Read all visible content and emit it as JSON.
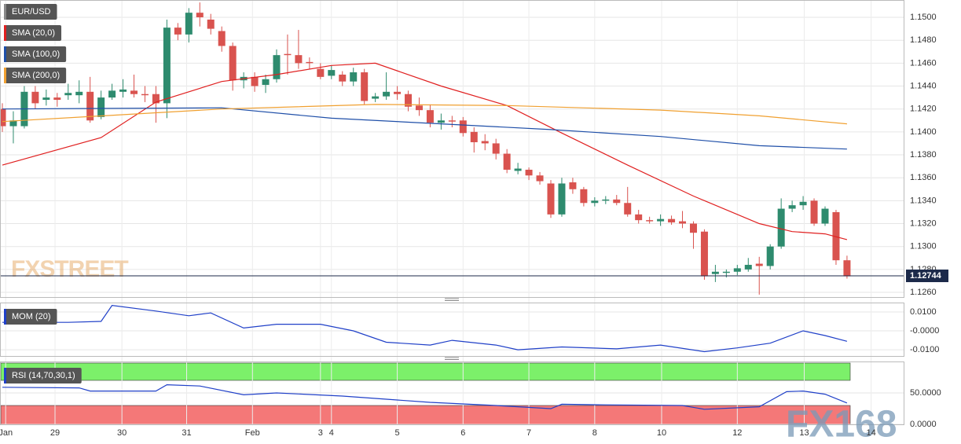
{
  "chart_data": [
    {
      "type": "candlestick",
      "series_name": "EUR/USD",
      "up_color": "#2e8b6e",
      "down_color": "#d9534f",
      "open": [
        1.142,
        1.1405,
        1.1405,
        1.1435,
        1.1428,
        1.143,
        1.1432,
        1.1432,
        1.1435,
        1.1413,
        1.143,
        1.1435,
        1.1436,
        1.1433,
        1.1433,
        1.1425,
        1.1491,
        1.1485,
        1.1504,
        1.1498,
        1.1488,
        1.1475,
        1.1445,
        1.1448,
        1.1441,
        1.1446,
        1.1468,
        1.1467,
        1.1461,
        1.1455,
        1.1449,
        1.145,
        1.1444,
        1.1452,
        1.1429,
        1.1431,
        1.1435,
        1.1433,
        1.1423,
        1.1419,
        1.1408,
        1.141,
        1.141,
        1.14,
        1.1392,
        1.139,
        1.1381,
        1.1366,
        1.1367,
        1.1362,
        1.1355,
        1.1328,
        1.1356,
        1.135,
        1.1338,
        1.134,
        1.1341,
        1.1338,
        1.1328,
        1.1323,
        1.1322,
        1.1324,
        1.1322,
        1.132,
        1.1313,
        1.1276,
        1.1277,
        1.1278,
        1.128,
        1.1285,
        1.1283,
        1.13,
        1.1333,
        1.1336,
        1.134,
        1.132,
        1.133,
        1.1288
      ],
      "high": [
        1.1425,
        1.1418,
        1.144,
        1.144,
        1.1437,
        1.1434,
        1.1442,
        1.1445,
        1.1448,
        1.1436,
        1.1442,
        1.1446,
        1.145,
        1.144,
        1.144,
        1.1498,
        1.1495,
        1.1508,
        1.1513,
        1.1503,
        1.1492,
        1.1478,
        1.1452,
        1.1452,
        1.145,
        1.1472,
        1.1485,
        1.1489,
        1.1465,
        1.146,
        1.1458,
        1.1453,
        1.1456,
        1.1455,
        1.1434,
        1.1452,
        1.144,
        1.1436,
        1.143,
        1.1424,
        1.1416,
        1.1414,
        1.1413,
        1.1404,
        1.1398,
        1.1394,
        1.1385,
        1.1373,
        1.1369,
        1.1365,
        1.1358,
        1.136,
        1.136,
        1.1352,
        1.1343,
        1.1344,
        1.1345,
        1.1352,
        1.1332,
        1.1326,
        1.1328,
        1.1327,
        1.1331,
        1.1322,
        1.1315,
        1.1284,
        1.128,
        1.1284,
        1.129,
        1.1291,
        1.1302,
        1.1342,
        1.134,
        1.1344,
        1.1342,
        1.1335,
        1.1332,
        1.1292
      ],
      "low": [
        1.14,
        1.139,
        1.1403,
        1.142,
        1.1423,
        1.1422,
        1.1428,
        1.1425,
        1.1408,
        1.1411,
        1.1428,
        1.143,
        1.143,
        1.1426,
        1.1408,
        1.1412,
        1.148,
        1.1478,
        1.1492,
        1.1485,
        1.147,
        1.1436,
        1.1438,
        1.1435,
        1.1434,
        1.1443,
        1.145,
        1.1455,
        1.1455,
        1.1446,
        1.1446,
        1.144,
        1.144,
        1.1424,
        1.1426,
        1.1428,
        1.1428,
        1.1418,
        1.1414,
        1.1404,
        1.1402,
        1.1404,
        1.1396,
        1.1382,
        1.1384,
        1.1376,
        1.1364,
        1.1363,
        1.1358,
        1.1354,
        1.1325,
        1.1326,
        1.1346,
        1.1335,
        1.1335,
        1.1337,
        1.1336,
        1.1326,
        1.132,
        1.132,
        1.1318,
        1.1319,
        1.1316,
        1.1298,
        1.1271,
        1.1269,
        1.1273,
        1.1275,
        1.1278,
        1.1258,
        1.128,
        1.1298,
        1.133,
        1.1332,
        1.1318,
        1.1318,
        1.1284,
        1.1272
      ],
      "close": [
        1.1405,
        1.141,
        1.1435,
        1.1425,
        1.143,
        1.1428,
        1.1434,
        1.1435,
        1.141,
        1.143,
        1.1436,
        1.1437,
        1.1433,
        1.1432,
        1.1425,
        1.1491,
        1.1485,
        1.1504,
        1.15,
        1.149,
        1.1475,
        1.1445,
        1.1448,
        1.144,
        1.1446,
        1.1467,
        1.1467,
        1.146,
        1.146,
        1.1448,
        1.1454,
        1.1444,
        1.1452,
        1.1427,
        1.1431,
        1.1435,
        1.1433,
        1.1422,
        1.1419,
        1.1408,
        1.141,
        1.1409,
        1.1399,
        1.1391,
        1.139,
        1.1381,
        1.1367,
        1.1368,
        1.1362,
        1.1357,
        1.1328,
        1.1355,
        1.135,
        1.1338,
        1.134,
        1.1341,
        1.1338,
        1.1328,
        1.1323,
        1.1322,
        1.1324,
        1.1321,
        1.132,
        1.1312,
        1.1274,
        1.1278,
        1.1278,
        1.1281,
        1.1284,
        1.1283,
        1.13,
        1.1333,
        1.1336,
        1.1339,
        1.132,
        1.1333,
        1.1288,
        1.1274
      ],
      "series": [
        {
          "name": "SMA (20,0)",
          "color": "#e02020",
          "x": [
            0,
            9,
            14,
            20,
            25,
            30,
            34,
            40,
            46,
            51,
            57,
            63,
            69,
            72,
            75,
            77
          ],
          "values": [
            1.1371,
            1.1395,
            1.1426,
            1.1444,
            1.145,
            1.1458,
            1.146,
            1.144,
            1.1423,
            1.1399,
            1.1371,
            1.1344,
            1.132,
            1.1313,
            1.1311,
            1.1306
          ]
        },
        {
          "name": "SMA (100,0)",
          "color": "#1f4fa8",
          "x": [
            0,
            20,
            30,
            40,
            50,
            60,
            69,
            77
          ],
          "values": [
            1.142,
            1.1421,
            1.1412,
            1.1407,
            1.1402,
            1.1396,
            1.1388,
            1.1385
          ]
        },
        {
          "name": "SMA (200,0)",
          "color": "#f0a030",
          "x": [
            0,
            20,
            34,
            46,
            60,
            69,
            77
          ],
          "values": [
            1.1409,
            1.142,
            1.1424,
            1.1423,
            1.1419,
            1.1414,
            1.1407
          ]
        }
      ],
      "last_price": 1.12744,
      "ylim": [
        1.12559,
        1.15151
      ],
      "yticks": [
        {
          "value": 1.126,
          "label": "1.1260"
        },
        {
          "value": 1.128,
          "label": "1.1280"
        },
        {
          "value": 1.13,
          "label": "1.1300"
        },
        {
          "value": 1.132,
          "label": "1.1320"
        },
        {
          "value": 1.134,
          "label": "1.1340"
        },
        {
          "value": 1.136,
          "label": "1.1360"
        },
        {
          "value": 1.138,
          "label": "1.1380"
        },
        {
          "value": 1.14,
          "label": "1.1400"
        },
        {
          "value": 1.142,
          "label": "1.1420"
        },
        {
          "value": 1.144,
          "label": "1.1440"
        },
        {
          "value": 1.146,
          "label": "1.1460"
        },
        {
          "value": 1.148,
          "label": "1.1480"
        },
        {
          "value": 1.15,
          "label": "1.1500"
        }
      ]
    },
    {
      "type": "line",
      "series": [
        {
          "name": "MOM (20)",
          "color": "#2040c8",
          "x": [
            0,
            6,
            9,
            10,
            14,
            17,
            19,
            22,
            25,
            29,
            32,
            35,
            39,
            41,
            45,
            47,
            51,
            56,
            60,
            64,
            67,
            70,
            73,
            75,
            77
          ],
          "values": [
            0.0045,
            0.0045,
            0.005,
            0.0135,
            0.0105,
            0.008,
            0.0095,
            0.0015,
            0.0035,
            0.0035,
            0.0,
            -0.006,
            -0.0075,
            -0.005,
            -0.0075,
            -0.01,
            -0.0085,
            -0.0095,
            -0.0075,
            -0.011,
            -0.009,
            -0.0065,
            0.0,
            -0.0025,
            -0.0055
          ]
        }
      ],
      "ylim": [
        -0.0133,
        0.015
      ],
      "yticks": [
        {
          "value": 0.01,
          "label": "0.0100"
        },
        {
          "value": 0,
          "label": "-0.0000"
        },
        {
          "value": -0.01,
          "label": "-0.0100"
        }
      ]
    },
    {
      "type": "line",
      "series": [
        {
          "name": "RSI (14,70,30,1)",
          "color": "#2040c8",
          "x": [
            0,
            7,
            8,
            14,
            15,
            18,
            22,
            25,
            31,
            35,
            39,
            45,
            50,
            51,
            55,
            62,
            64,
            69,
            71.5,
            73,
            75,
            77
          ],
          "values": [
            59,
            58,
            53,
            53,
            63,
            61,
            47,
            50,
            45,
            40,
            35,
            30,
            25,
            32,
            31,
            30,
            24,
            28,
            52,
            53,
            48,
            34
          ]
        }
      ],
      "bands": [
        {
          "from": 70,
          "to": 100,
          "color": "#7cf06a"
        },
        {
          "from": 0,
          "to": 30,
          "color": "#f47878"
        }
      ],
      "ylim": [
        0,
        100
      ],
      "yticks": [
        {
          "value": 50,
          "label": "50.0000"
        },
        {
          "value": 0,
          "label": "0.0000"
        }
      ],
      "xticks": [
        {
          "value": 0.3,
          "label": "Jan"
        },
        {
          "value": 4.8,
          "label": "29"
        },
        {
          "value": 10.9,
          "label": "30"
        },
        {
          "value": 16.8,
          "label": "31"
        },
        {
          "value": 22.8,
          "label": "Feb"
        },
        {
          "value": 29,
          "label": "3"
        },
        {
          "value": 30,
          "label": "4"
        },
        {
          "value": 36,
          "label": "5"
        },
        {
          "value": 42,
          "label": "6"
        },
        {
          "value": 48,
          "label": "7"
        },
        {
          "value": 54,
          "label": "8"
        },
        {
          "value": 60.1,
          "label": "10"
        },
        {
          "value": 67,
          "label": "12"
        },
        {
          "value": 73.1,
          "label": "13"
        },
        {
          "value": 79.2,
          "label": "14"
        }
      ]
    }
  ],
  "watermarks": [
    "FXSTREET",
    "FX168"
  ]
}
